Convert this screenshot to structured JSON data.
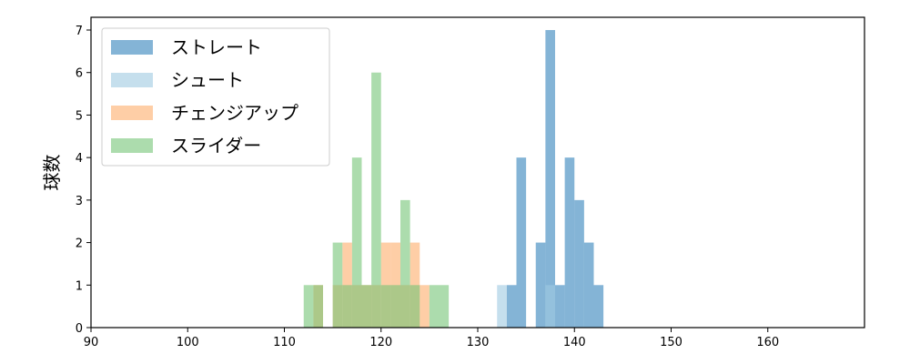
{
  "chart_data": {
    "type": "histogram",
    "ylabel": "球数",
    "xlabel": "",
    "xlim": [
      90,
      170
    ],
    "ylim": [
      0,
      7.3
    ],
    "xticks": [
      90,
      100,
      110,
      120,
      130,
      140,
      150,
      160
    ],
    "yticks": [
      0,
      1,
      2,
      3,
      4,
      5,
      6,
      7
    ],
    "bin_width": 1,
    "grid": false,
    "legend_position": "top-left",
    "series": [
      {
        "name": "ストレート",
        "color": "#1f77b4",
        "opacity": 0.55,
        "bins": [
          {
            "x": 133,
            "count": 1
          },
          {
            "x": 134,
            "count": 4
          },
          {
            "x": 136,
            "count": 2
          },
          {
            "x": 137,
            "count": 7
          },
          {
            "x": 138,
            "count": 1
          },
          {
            "x": 139,
            "count": 4
          },
          {
            "x": 140,
            "count": 3
          },
          {
            "x": 141,
            "count": 2
          },
          {
            "x": 142,
            "count": 1
          }
        ]
      },
      {
        "name": "シュート",
        "color": "#9ecae1",
        "opacity": 0.6,
        "bins": [
          {
            "x": 132,
            "count": 1
          },
          {
            "x": 137,
            "count": 1
          }
        ]
      },
      {
        "name": "チェンジアップ",
        "color": "#fdae6b",
        "opacity": 0.6,
        "bins": [
          {
            "x": 113,
            "count": 1
          },
          {
            "x": 115,
            "count": 1
          },
          {
            "x": 116,
            "count": 2
          },
          {
            "x": 117,
            "count": 1
          },
          {
            "x": 118,
            "count": 1
          },
          {
            "x": 119,
            "count": 1
          },
          {
            "x": 120,
            "count": 2
          },
          {
            "x": 121,
            "count": 2
          },
          {
            "x": 122,
            "count": 1
          },
          {
            "x": 123,
            "count": 2
          },
          {
            "x": 124,
            "count": 1
          }
        ]
      },
      {
        "name": "スライダー",
        "color": "#74c476",
        "opacity": 0.6,
        "bins": [
          {
            "x": 112,
            "count": 1
          },
          {
            "x": 113,
            "count": 1
          },
          {
            "x": 115,
            "count": 2
          },
          {
            "x": 116,
            "count": 1
          },
          {
            "x": 117,
            "count": 4
          },
          {
            "x": 118,
            "count": 1
          },
          {
            "x": 119,
            "count": 6
          },
          {
            "x": 120,
            "count": 1
          },
          {
            "x": 121,
            "count": 1
          },
          {
            "x": 122,
            "count": 3
          },
          {
            "x": 123,
            "count": 1
          },
          {
            "x": 125,
            "count": 1
          },
          {
            "x": 126,
            "count": 1
          }
        ]
      }
    ]
  }
}
